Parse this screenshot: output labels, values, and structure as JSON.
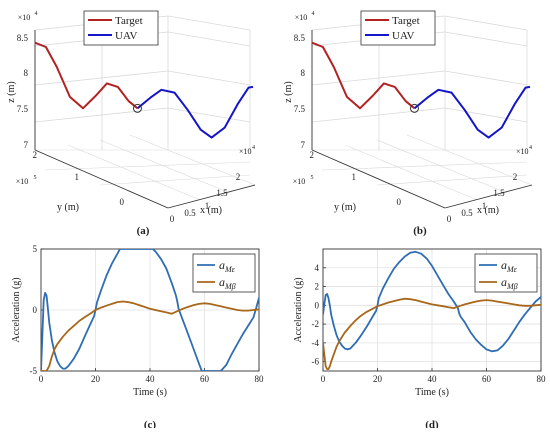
{
  "chart_data": [
    {
      "type": "line3d",
      "panel_label": "(a)",
      "legend": [
        "Target",
        "UAV"
      ],
      "legend_placement": "top",
      "axes": {
        "x": {
          "label": "x (m)",
          "ticks": [
            "0",
            "0.5",
            "1",
            "1.5",
            "2"
          ],
          "exponent": "×10",
          "exponent_power": "4",
          "range": [
            0,
            20000
          ]
        },
        "y": {
          "label": "y (m)",
          "ticks": [
            "0",
            "1",
            "2"
          ],
          "exponent": "×10",
          "exponent_power": "5",
          "range": [
            0,
            200000
          ]
        },
        "z": {
          "label": "z (m)",
          "ticks": [
            "7",
            "7.5",
            "8",
            "8.5"
          ],
          "exponent": "×10",
          "exponent_power": "4",
          "range": [
            70000,
            85000
          ]
        }
      },
      "grid": true,
      "series": [
        {
          "name": "Target",
          "color": "#b22222",
          "points": [
            [
              0.0,
              84200
            ],
            [
              0.05,
              83600
            ],
            [
              0.1,
              80800
            ],
            [
              0.16,
              76600
            ],
            [
              0.22,
              75000
            ],
            [
              0.28,
              76800
            ],
            [
              0.33,
              78500
            ],
            [
              0.38,
              78000
            ],
            [
              0.43,
              76000
            ],
            [
              0.47,
              75000
            ]
          ]
        },
        {
          "name": "UAV",
          "color": "#1515c8",
          "points": [
            [
              0.47,
              75000
            ],
            [
              0.53,
              76500
            ],
            [
              0.58,
              77600
            ],
            [
              0.64,
              77200
            ],
            [
              0.7,
              74800
            ],
            [
              0.76,
              72000
            ],
            [
              0.81,
              70900
            ],
            [
              0.87,
              72300
            ],
            [
              0.93,
              75600
            ],
            [
              0.98,
              77900
            ],
            [
              1.0,
              78000
            ]
          ]
        }
      ],
      "intercept_marker": true
    },
    {
      "type": "line3d",
      "panel_label": "(b)",
      "legend": [
        "Target",
        "UAV"
      ],
      "legend_placement": "top",
      "axes": {
        "x": {
          "label": "x (m)",
          "ticks": [
            "0",
            "0.5",
            "1",
            "1.5",
            "2"
          ],
          "exponent": "×10",
          "exponent_power": "4",
          "range": [
            0,
            20000
          ]
        },
        "y": {
          "label": "y (m)",
          "ticks": [
            "0",
            "1",
            "2"
          ],
          "exponent": "×10",
          "exponent_power": "5",
          "range": [
            0,
            200000
          ]
        },
        "z": {
          "label": "z (m)",
          "ticks": [
            "7",
            "7.5",
            "8",
            "8.5"
          ],
          "exponent": "×10",
          "exponent_power": "4",
          "range": [
            70000,
            85000
          ]
        }
      },
      "grid": true,
      "series": [
        {
          "name": "Target",
          "color": "#b22222",
          "points": [
            [
              0.0,
              84200
            ],
            [
              0.05,
              83600
            ],
            [
              0.1,
              80800
            ],
            [
              0.16,
              76600
            ],
            [
              0.22,
              75000
            ],
            [
              0.28,
              76800
            ],
            [
              0.33,
              78500
            ],
            [
              0.38,
              78000
            ],
            [
              0.43,
              76000
            ],
            [
              0.47,
              75000
            ]
          ]
        },
        {
          "name": "UAV",
          "color": "#1515c8",
          "points": [
            [
              0.47,
              75000
            ],
            [
              0.53,
              76500
            ],
            [
              0.58,
              77600
            ],
            [
              0.64,
              77200
            ],
            [
              0.7,
              74800
            ],
            [
              0.76,
              72000
            ],
            [
              0.81,
              70900
            ],
            [
              0.87,
              72300
            ],
            [
              0.93,
              75600
            ],
            [
              0.98,
              77900
            ],
            [
              1.0,
              78000
            ]
          ]
        }
      ],
      "intercept_marker": true
    },
    {
      "type": "line",
      "panel_label": "(c)",
      "xlabel": "Time (s)",
      "ylabel": "Acceleration (g)",
      "xlim": [
        0,
        80
      ],
      "ylim": [
        -5,
        5
      ],
      "xticks": [
        0,
        20,
        40,
        60,
        80
      ],
      "yticks": [
        -5,
        0,
        5
      ],
      "grid": true,
      "legend_placement": "top-right",
      "series": [
        {
          "name": "a",
          "subscript": "Mε",
          "color": "#2e6db4",
          "x": [
            0,
            0.5,
            1,
            1.5,
            2,
            2.5,
            3,
            4,
            5,
            6,
            7,
            8,
            9,
            10,
            12,
            14,
            16,
            18,
            19.5,
            20,
            20.5,
            22,
            24,
            26,
            28,
            29,
            30,
            35,
            40,
            41,
            42,
            44,
            46,
            48,
            49.5,
            50,
            50.5,
            52,
            54,
            56,
            58,
            59,
            60,
            65,
            66,
            68,
            70,
            72,
            74,
            76,
            78,
            79,
            80
          ],
          "y": [
            -5,
            -2,
            0.8,
            1.4,
            1.2,
            0.2,
            -1.0,
            -2.5,
            -3.5,
            -4.2,
            -4.6,
            -4.8,
            -4.8,
            -4.6,
            -4.0,
            -3.2,
            -2.2,
            -1.2,
            -0.5,
            0.0,
            0.6,
            1.6,
            2.8,
            3.8,
            4.6,
            5,
            5,
            5,
            5,
            5,
            4.8,
            4.2,
            3.4,
            2.2,
            1.2,
            0.7,
            0.1,
            -0.8,
            -2.0,
            -3.2,
            -4.4,
            -5,
            -5,
            -5,
            -5,
            -4.5,
            -3.6,
            -2.8,
            -2.0,
            -1.3,
            -0.6,
            0.2,
            1.0
          ]
        },
        {
          "name": "a",
          "subscript": "Mβ",
          "color": "#a8671a",
          "x": [
            0,
            1,
            1.5,
            2,
            3,
            4,
            5,
            6,
            8,
            10,
            12,
            14,
            16,
            18,
            20,
            22,
            24,
            26,
            28,
            30,
            32,
            34,
            36,
            38,
            40,
            42,
            44,
            46,
            48,
            50,
            52,
            54,
            56,
            58,
            60,
            62,
            64,
            66,
            68,
            70,
            72,
            74,
            76,
            78,
            80
          ],
          "y": [
            -5,
            -5,
            -5,
            -5,
            -4.6,
            -3.8,
            -3.2,
            -2.8,
            -2.2,
            -1.7,
            -1.3,
            -0.9,
            -0.6,
            -0.3,
            0.0,
            0.2,
            0.35,
            0.5,
            0.65,
            0.7,
            0.65,
            0.55,
            0.4,
            0.25,
            0.1,
            0.0,
            -0.1,
            -0.2,
            -0.3,
            -0.1,
            0.1,
            0.25,
            0.4,
            0.5,
            0.55,
            0.5,
            0.4,
            0.3,
            0.2,
            0.1,
            0.0,
            -0.05,
            -0.05,
            0.0,
            0.05
          ]
        }
      ]
    },
    {
      "type": "line",
      "panel_label": "(d)",
      "xlabel": "Time (s)",
      "ylabel": "Acceleration (g)",
      "xlim": [
        0,
        80
      ],
      "ylim": [
        -7,
        6
      ],
      "xticks": [
        0,
        20,
        40,
        60,
        80
      ],
      "yticks": [
        -6,
        -4,
        -2,
        0,
        2,
        4
      ],
      "grid": true,
      "legend_placement": "top-right",
      "series": [
        {
          "name": "a",
          "subscript": "Mε",
          "color": "#2e6db4",
          "x": [
            0,
            0.5,
            1,
            1.5,
            2,
            2.5,
            3,
            4,
            5,
            6,
            7,
            8,
            9,
            10,
            12,
            14,
            16,
            18,
            19.5,
            20,
            20.5,
            22,
            24,
            26,
            28,
            30,
            32,
            34,
            36,
            38,
            40,
            42,
            44,
            46,
            48,
            49.5,
            50,
            50.5,
            52,
            54,
            56,
            58,
            60,
            62,
            64,
            66,
            68,
            70,
            72,
            74,
            76,
            78,
            80
          ],
          "y": [
            -1.0,
            0.2,
            1.1,
            1.2,
            0.8,
            0.0,
            -1.0,
            -2.2,
            -3.2,
            -3.9,
            -4.3,
            -4.6,
            -4.7,
            -4.6,
            -4.0,
            -3.2,
            -2.3,
            -1.3,
            -0.6,
            0.0,
            0.8,
            1.8,
            2.9,
            3.9,
            4.6,
            5.2,
            5.6,
            5.7,
            5.5,
            5.0,
            4.2,
            3.2,
            2.2,
            1.2,
            0.4,
            -0.3,
            -0.9,
            -1.2,
            -1.8,
            -2.8,
            -3.6,
            -4.2,
            -4.7,
            -4.9,
            -4.8,
            -4.3,
            -3.6,
            -2.7,
            -1.8,
            -1.0,
            -0.3,
            0.4,
            0.9
          ]
        },
        {
          "name": "a",
          "subscript": "Mβ",
          "color": "#a8671a",
          "x": [
            0,
            1,
            1.5,
            2,
            2.5,
            3,
            4,
            5,
            6,
            8,
            10,
            12,
            14,
            16,
            18,
            20,
            22,
            24,
            26,
            28,
            30,
            32,
            34,
            36,
            38,
            40,
            42,
            44,
            46,
            48,
            50,
            52,
            54,
            56,
            58,
            60,
            62,
            64,
            66,
            68,
            70,
            72,
            74,
            76,
            78,
            80
          ],
          "y": [
            -4,
            -6.5,
            -6.8,
            -6.8,
            -6.5,
            -6.0,
            -5.2,
            -4.4,
            -3.8,
            -2.9,
            -2.2,
            -1.6,
            -1.1,
            -0.7,
            -0.4,
            -0.1,
            0.1,
            0.3,
            0.45,
            0.6,
            0.7,
            0.65,
            0.55,
            0.4,
            0.25,
            0.1,
            0.0,
            -0.1,
            -0.2,
            -0.3,
            -0.1,
            0.1,
            0.25,
            0.4,
            0.5,
            0.55,
            0.5,
            0.4,
            0.3,
            0.2,
            0.1,
            0.0,
            -0.05,
            -0.05,
            0.0,
            0.05
          ]
        }
      ]
    }
  ]
}
